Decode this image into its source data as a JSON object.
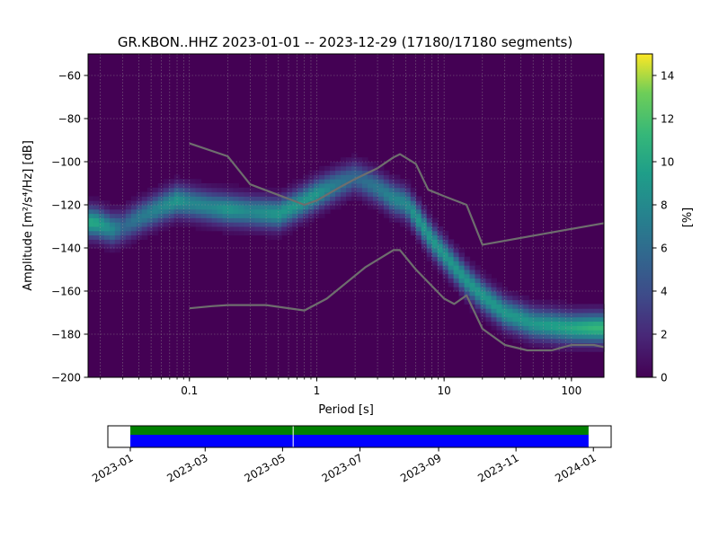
{
  "chart_data": [
    {
      "type": "heatmap",
      "title": "GR.KBON..HHZ   2023-01-01 -- 2023-12-29  (17180/17180 segments)",
      "xlabel": "Period [s]",
      "ylabel": "Amplitude [m²/s⁴/Hz] [dB]",
      "xscale": "log",
      "xlim": [
        0.016,
        180
      ],
      "ylim": [
        -200,
        -50
      ],
      "xticks": [
        {
          "v": 0.1,
          "label": "0.1"
        },
        {
          "v": 1,
          "label": "1"
        },
        {
          "v": 10,
          "label": "10"
        },
        {
          "v": 100,
          "label": "100"
        }
      ],
      "yticks": [
        {
          "v": -60,
          "label": "−60"
        },
        {
          "v": -80,
          "label": "−80"
        },
        {
          "v": -100,
          "label": "−100"
        },
        {
          "v": -120,
          "label": "−120"
        },
        {
          "v": -140,
          "label": "−140"
        },
        {
          "v": -160,
          "label": "−160"
        },
        {
          "v": -180,
          "label": "−180"
        },
        {
          "v": -200,
          "label": "−200"
        }
      ],
      "grid": true,
      "colormap": "viridis",
      "colorbar": {
        "label": "[%]",
        "range": [
          0,
          15
        ],
        "ticks": [
          {
            "v": 0,
            "label": "0"
          },
          {
            "v": 2,
            "label": "2"
          },
          {
            "v": 4,
            "label": "4"
          },
          {
            "v": 6,
            "label": "6"
          },
          {
            "v": 8,
            "label": "8"
          },
          {
            "v": 10,
            "label": "10"
          },
          {
            "v": 12,
            "label": "12"
          },
          {
            "v": 14,
            "label": "14"
          }
        ]
      },
      "density_ridge": [
        {
          "period": 0.018,
          "db": -128,
          "pct": 9
        },
        {
          "period": 0.025,
          "db": -131,
          "pct": 7
        },
        {
          "period": 0.03,
          "db": -130,
          "pct": 5
        },
        {
          "period": 0.04,
          "db": -126,
          "pct": 6
        },
        {
          "period": 0.06,
          "db": -121,
          "pct": 7
        },
        {
          "period": 0.08,
          "db": -118,
          "pct": 8
        },
        {
          "period": 0.1,
          "db": -119,
          "pct": 7
        },
        {
          "period": 0.15,
          "db": -121,
          "pct": 7
        },
        {
          "period": 0.2,
          "db": -122,
          "pct": 8
        },
        {
          "period": 0.3,
          "db": -123,
          "pct": 7
        },
        {
          "period": 0.5,
          "db": -124,
          "pct": 8
        },
        {
          "period": 0.7,
          "db": -120,
          "pct": 8
        },
        {
          "period": 1.0,
          "db": -115,
          "pct": 8
        },
        {
          "period": 1.5,
          "db": -110,
          "pct": 6
        },
        {
          "period": 2.0,
          "db": -107,
          "pct": 5
        },
        {
          "period": 3.0,
          "db": -112,
          "pct": 6
        },
        {
          "period": 4.0,
          "db": -117,
          "pct": 7
        },
        {
          "period": 5.0,
          "db": -119,
          "pct": 7
        },
        {
          "period": 6.0,
          "db": -125,
          "pct": 8
        },
        {
          "period": 8.0,
          "db": -136,
          "pct": 8
        },
        {
          "period": 10,
          "db": -143,
          "pct": 8
        },
        {
          "period": 15,
          "db": -155,
          "pct": 8
        },
        {
          "period": 20,
          "db": -162,
          "pct": 8
        },
        {
          "period": 30,
          "db": -170,
          "pct": 8
        },
        {
          "period": 50,
          "db": -175,
          "pct": 8
        },
        {
          "period": 100,
          "db": -177,
          "pct": 9
        },
        {
          "period": 150,
          "db": -177,
          "pct": 10
        },
        {
          "period": 180,
          "db": -177,
          "pct": 10
        }
      ],
      "series": [
        {
          "x": [
            0.1,
            0.2,
            0.3,
            0.8,
            1.0,
            1.5,
            2.0,
            3.0,
            4.0,
            4.5,
            6.0,
            7.5,
            10.0,
            15.0,
            20.0,
            180.0
          ],
          "y": [
            -91.5,
            -97.5,
            -110.5,
            -120,
            -118,
            -112,
            -108,
            -103,
            -98,
            -96.5,
            -101,
            -113,
            -116,
            -120,
            -138.5,
            -128.5
          ]
        },
        {
          "x": [
            0.1,
            0.15,
            0.2,
            0.3,
            0.4,
            0.8,
            1.2,
            2.4,
            4.0,
            4.5,
            6.0,
            10.0,
            12.0,
            15.0,
            20.0,
            30.0,
            45.0,
            70.0,
            100.0,
            150.0,
            180.0
          ],
          "y": [
            -168,
            -167,
            -166.5,
            -166.5,
            -166.5,
            -169,
            -163.5,
            -149,
            -141,
            -141,
            -150,
            -163.5,
            -166,
            -162,
            -177.5,
            -185,
            -187.5,
            -187.5,
            -185,
            -185,
            -186
          ]
        }
      ]
    },
    {
      "type": "timeline",
      "xlim": [
        "2023-01-01",
        "2024-01-15"
      ],
      "xticks": [
        {
          "date": "2023-01-01",
          "label": "2023-01"
        },
        {
          "date": "2023-03-01",
          "label": "2023-03"
        },
        {
          "date": "2023-05-01",
          "label": "2023-05"
        },
        {
          "date": "2023-07-01",
          "label": "2023-07"
        },
        {
          "date": "2023-09-01",
          "label": "2023-09"
        },
        {
          "date": "2023-11-01",
          "label": "2023-11"
        },
        {
          "date": "2024-01-01",
          "label": "2024-01"
        }
      ],
      "bars": [
        {
          "start": "2023-01-01",
          "end": "2023-12-29",
          "color": "#008000"
        },
        {
          "start": "2023-01-01",
          "end": "2023-12-29",
          "color": "#0000ff"
        }
      ],
      "gaps": [
        "2023-05-07"
      ]
    }
  ]
}
